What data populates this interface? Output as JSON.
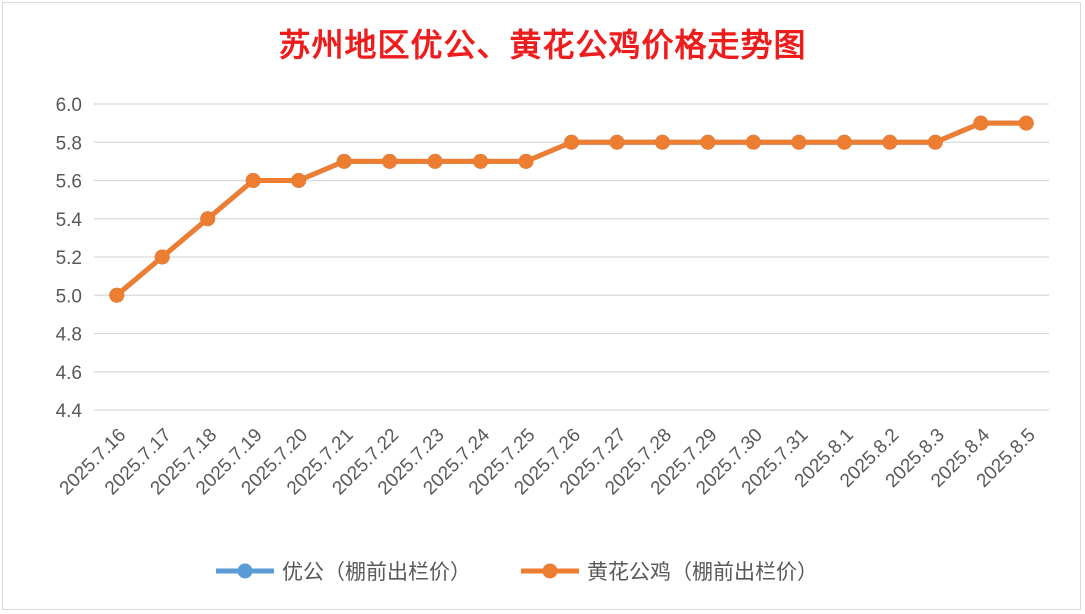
{
  "chart_data": {
    "type": "line",
    "title": "苏州地区优公、黄花公鸡价格走势图",
    "categories": [
      "2025.7.16",
      "2025.7.17",
      "2025.7.18",
      "2025.7.19",
      "2025.7.20",
      "2025.7.21",
      "2025.7.22",
      "2025.7.23",
      "2025.7.24",
      "2025.7.25",
      "2025.7.26",
      "2025.7.27",
      "2025.7.28",
      "2025.7.29",
      "2025.7.30",
      "2025.7.31",
      "2025.8.1",
      "2025.8.2",
      "2025.8.3",
      "2025.8.4",
      "2025.8.5"
    ],
    "series": [
      {
        "name": "优公（棚前出栏价）",
        "color": "#5b9bd5",
        "values": [
          5.0,
          5.2,
          5.4,
          5.6,
          5.6,
          5.7,
          5.7,
          5.7,
          5.7,
          5.7,
          5.8,
          5.8,
          5.8,
          5.8,
          5.8,
          5.8,
          5.8,
          5.8,
          5.8,
          5.9,
          5.9
        ]
      },
      {
        "name": "黄花公鸡（棚前出栏价）",
        "color": "#ed7d31",
        "values": [
          5.0,
          5.2,
          5.4,
          5.6,
          5.6,
          5.7,
          5.7,
          5.7,
          5.7,
          5.7,
          5.8,
          5.8,
          5.8,
          5.8,
          5.8,
          5.8,
          5.8,
          5.8,
          5.8,
          5.9,
          5.9
        ]
      }
    ],
    "ylim": [
      4.4,
      6.0
    ],
    "yticks": [
      "4.4",
      "4.6",
      "4.8",
      "5.0",
      "5.2",
      "5.4",
      "5.6",
      "5.8",
      "6.0"
    ],
    "xlabel": "",
    "ylabel": "",
    "grid": true,
    "legend": "bottom",
    "title_color": "#ee1c1c"
  }
}
